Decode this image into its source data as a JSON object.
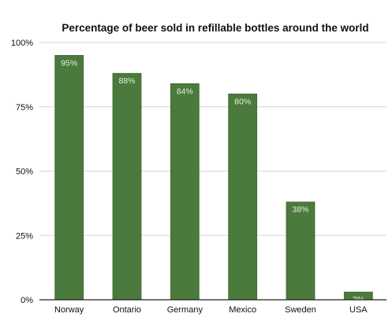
{
  "chart_data": {
    "type": "bar",
    "title": "Percentage of beer sold in refillable bottles around the world",
    "categories": [
      "Norway",
      "Ontario",
      "Germany",
      "Mexico",
      "Sweden",
      "USA"
    ],
    "values": [
      95,
      88,
      84,
      80,
      38,
      3
    ],
    "data_labels": [
      "95%",
      "88%",
      "84%",
      "80%",
      "38%",
      "3%"
    ],
    "yticks": [
      0,
      25,
      50,
      75,
      100
    ],
    "ytick_labels": [
      "0%",
      "25%",
      "50%",
      "75%",
      "100%"
    ],
    "ylim": [
      0,
      100
    ],
    "grid": true,
    "legend": "none",
    "colors": {
      "bar": "#4a7a3c",
      "bar_border": "#3f6a33",
      "grid": "#d6d6d6",
      "axis": "#222222",
      "data_label": "#e9f0e4",
      "text": "#111111"
    }
  }
}
